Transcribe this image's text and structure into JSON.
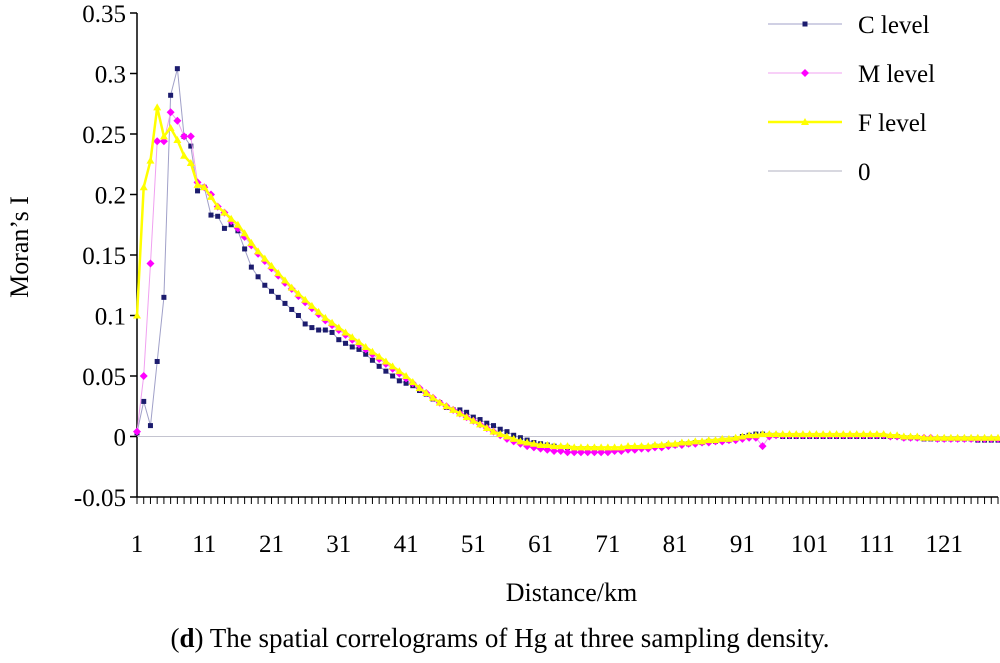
{
  "caption": {
    "prefix": "d",
    "text": " The spatial correlograms of Hg at three sampling density."
  },
  "chart_data": {
    "type": "line",
    "title": "",
    "xlabel": "Distance/km",
    "ylabel": "Moran’s I",
    "xlim": [
      1,
      129
    ],
    "ylim": [
      -0.05,
      0.35
    ],
    "xticks": [
      1,
      11,
      21,
      31,
      41,
      51,
      61,
      71,
      81,
      91,
      101,
      111,
      121
    ],
    "yticks": [
      -0.05,
      0,
      0.05,
      0.1,
      0.15,
      0.2,
      0.25,
      0.3,
      0.35
    ],
    "ytick_labels": [
      "-0.05",
      "0",
      "0.05",
      "0.1",
      "0.15",
      "0.2",
      "0.25",
      "0.3",
      "0.35"
    ],
    "grid": false,
    "legend_position": "top-right",
    "series": [
      {
        "name": "C level",
        "color": "#1c1c6e",
        "line_color": "#a0a0c8",
        "marker": "square",
        "x": [
          1,
          2,
          3,
          4,
          5,
          6,
          7,
          8,
          9,
          10,
          11,
          12,
          13,
          14,
          15,
          16,
          17,
          18,
          19,
          20,
          21,
          22,
          23,
          24,
          25,
          26,
          27,
          28,
          29,
          30,
          31,
          32,
          33,
          34,
          35,
          36,
          37,
          38,
          39,
          40,
          41,
          42,
          43,
          44,
          45,
          46,
          47,
          48,
          49,
          50,
          51,
          52,
          53,
          54,
          55,
          56,
          57,
          58,
          59,
          60,
          61,
          62,
          63,
          64,
          65,
          66,
          67,
          68,
          69,
          70,
          71,
          72,
          73,
          74,
          75,
          76,
          77,
          78,
          79,
          80,
          81,
          82,
          83,
          84,
          85,
          86,
          87,
          88,
          89,
          90,
          91,
          92,
          93,
          94,
          95,
          96,
          97,
          98,
          99,
          100,
          101,
          102,
          103,
          104,
          105,
          106,
          107,
          108,
          109,
          110,
          111,
          112,
          113,
          114,
          115,
          116,
          117,
          118,
          119,
          120,
          121,
          122,
          123,
          124,
          125,
          126,
          127,
          128,
          129
        ],
        "y": [
          0.003,
          0.029,
          0.009,
          0.062,
          0.115,
          0.282,
          0.304,
          0.248,
          0.24,
          0.203,
          0.206,
          0.183,
          0.182,
          0.172,
          0.175,
          0.17,
          0.155,
          0.14,
          0.132,
          0.125,
          0.12,
          0.115,
          0.11,
          0.105,
          0.1,
          0.093,
          0.09,
          0.088,
          0.088,
          0.086,
          0.08,
          0.077,
          0.074,
          0.072,
          0.068,
          0.063,
          0.058,
          0.054,
          0.05,
          0.046,
          0.044,
          0.042,
          0.038,
          0.035,
          0.031,
          0.028,
          0.024,
          0.022,
          0.022,
          0.02,
          0.016,
          0.014,
          0.011,
          0.009,
          0.006,
          0.004,
          0.001,
          -0.001,
          -0.003,
          -0.005,
          -0.006,
          -0.007,
          -0.008,
          -0.009,
          -0.009,
          -0.01,
          -0.01,
          -0.01,
          -0.01,
          -0.011,
          -0.011,
          -0.011,
          -0.011,
          -0.01,
          -0.01,
          -0.009,
          -0.009,
          -0.008,
          -0.008,
          -0.007,
          -0.007,
          -0.006,
          -0.006,
          -0.005,
          -0.005,
          -0.004,
          -0.004,
          -0.003,
          -0.003,
          -0.002,
          0.0,
          0.001,
          0.002,
          0.002,
          0.001,
          0.001,
          0.0,
          0.0,
          0.0,
          0.0,
          0.0,
          0.0,
          0.0,
          0.0,
          0.0,
          0.0,
          0.0,
          0.0,
          0.0,
          0.0,
          0.0,
          0.0,
          0.0,
          0.0,
          -0.001,
          -0.001,
          -0.001,
          -0.002,
          -0.002,
          -0.002,
          -0.002,
          -0.002,
          -0.002,
          -0.002,
          -0.002,
          -0.003,
          -0.003,
          -0.003,
          -0.003
        ]
      },
      {
        "name": "M level",
        "color": "#ff00ff",
        "line_color": "#f0a0f0",
        "marker": "diamond",
        "x": [
          1,
          2,
          3,
          4,
          5,
          6,
          7,
          8,
          9,
          10,
          11,
          12,
          13,
          14,
          15,
          16,
          17,
          18,
          19,
          20,
          21,
          22,
          23,
          24,
          25,
          26,
          27,
          28,
          29,
          30,
          31,
          32,
          33,
          34,
          35,
          36,
          37,
          38,
          39,
          40,
          41,
          42,
          43,
          44,
          45,
          46,
          47,
          48,
          49,
          50,
          51,
          52,
          53,
          54,
          55,
          56,
          57,
          58,
          59,
          60,
          61,
          62,
          63,
          64,
          65,
          66,
          67,
          68,
          69,
          70,
          71,
          72,
          73,
          74,
          75,
          76,
          77,
          78,
          79,
          80,
          81,
          82,
          83,
          84,
          85,
          86,
          87,
          88,
          89,
          90,
          91,
          92,
          93,
          94,
          95,
          96,
          97,
          98,
          99,
          100,
          101,
          102,
          103,
          104,
          105,
          106,
          107,
          108,
          109,
          110,
          111,
          112,
          113,
          114,
          115,
          116,
          117,
          118,
          119,
          120,
          121,
          122,
          123,
          124,
          125,
          126,
          127,
          128,
          129
        ],
        "y": [
          0.004,
          0.05,
          0.143,
          0.244,
          0.244,
          0.268,
          0.261,
          0.248,
          0.248,
          0.21,
          0.206,
          0.2,
          0.19,
          0.185,
          0.178,
          0.172,
          0.165,
          0.158,
          0.151,
          0.145,
          0.139,
          0.133,
          0.127,
          0.122,
          0.116,
          0.111,
          0.106,
          0.101,
          0.096,
          0.092,
          0.088,
          0.084,
          0.08,
          0.076,
          0.072,
          0.068,
          0.064,
          0.06,
          0.056,
          0.052,
          0.048,
          0.044,
          0.04,
          0.036,
          0.032,
          0.028,
          0.025,
          0.022,
          0.019,
          0.016,
          0.013,
          0.01,
          0.007,
          0.004,
          0.001,
          -0.002,
          -0.004,
          -0.006,
          -0.008,
          -0.009,
          -0.01,
          -0.011,
          -0.012,
          -0.012,
          -0.013,
          -0.013,
          -0.013,
          -0.013,
          -0.013,
          -0.013,
          -0.013,
          -0.012,
          -0.012,
          -0.011,
          -0.011,
          -0.01,
          -0.01,
          -0.009,
          -0.009,
          -0.008,
          -0.007,
          -0.007,
          -0.006,
          -0.006,
          -0.005,
          -0.005,
          -0.004,
          -0.004,
          -0.003,
          -0.003,
          -0.002,
          -0.001,
          -0.001,
          -0.008,
          0.0,
          0.001,
          0.001,
          0.001,
          0.001,
          0.001,
          0.001,
          0.001,
          0.001,
          0.001,
          0.001,
          0.001,
          0.001,
          0.001,
          0.001,
          0.001,
          0.001,
          0.001,
          0.0,
          0.0,
          -0.001,
          -0.001,
          -0.001,
          -0.001,
          -0.001,
          -0.002,
          -0.002,
          -0.002,
          -0.002,
          -0.002,
          -0.002,
          -0.002,
          -0.002,
          -0.002,
          -0.002
        ]
      },
      {
        "name": "F level",
        "color": "#ffff00",
        "line_color": "#ffff00",
        "marker": "triangle",
        "x": [
          1,
          2,
          3,
          4,
          5,
          6,
          7,
          8,
          9,
          10,
          11,
          12,
          13,
          14,
          15,
          16,
          17,
          18,
          19,
          20,
          21,
          22,
          23,
          24,
          25,
          26,
          27,
          28,
          29,
          30,
          31,
          32,
          33,
          34,
          35,
          36,
          37,
          38,
          39,
          40,
          41,
          42,
          43,
          44,
          45,
          46,
          47,
          48,
          49,
          50,
          51,
          52,
          53,
          54,
          55,
          56,
          57,
          58,
          59,
          60,
          61,
          62,
          63,
          64,
          65,
          66,
          67,
          68,
          69,
          70,
          71,
          72,
          73,
          74,
          75,
          76,
          77,
          78,
          79,
          80,
          81,
          82,
          83,
          84,
          85,
          86,
          87,
          88,
          89,
          90,
          91,
          92,
          93,
          94,
          95,
          96,
          97,
          98,
          99,
          100,
          101,
          102,
          103,
          104,
          105,
          106,
          107,
          108,
          109,
          110,
          111,
          112,
          113,
          114,
          115,
          116,
          117,
          118,
          119,
          120,
          121,
          122,
          123,
          124,
          125,
          126,
          127,
          128,
          129
        ],
        "y": [
          0.1,
          0.206,
          0.228,
          0.272,
          0.248,
          0.255,
          0.245,
          0.232,
          0.226,
          0.208,
          0.206,
          0.198,
          0.19,
          0.185,
          0.18,
          0.175,
          0.168,
          0.16,
          0.153,
          0.147,
          0.141,
          0.135,
          0.129,
          0.123,
          0.118,
          0.113,
          0.108,
          0.103,
          0.098,
          0.094,
          0.09,
          0.086,
          0.082,
          0.078,
          0.074,
          0.07,
          0.066,
          0.062,
          0.058,
          0.054,
          0.05,
          0.045,
          0.04,
          0.036,
          0.032,
          0.028,
          0.025,
          0.022,
          0.019,
          0.016,
          0.013,
          0.01,
          0.007,
          0.004,
          0.002,
          0.0,
          -0.002,
          -0.004,
          -0.005,
          -0.006,
          -0.007,
          -0.007,
          -0.008,
          -0.008,
          -0.008,
          -0.009,
          -0.009,
          -0.009,
          -0.009,
          -0.009,
          -0.009,
          -0.009,
          -0.009,
          -0.008,
          -0.008,
          -0.008,
          -0.008,
          -0.007,
          -0.007,
          -0.006,
          -0.006,
          -0.005,
          -0.005,
          -0.004,
          -0.004,
          -0.003,
          -0.003,
          -0.002,
          -0.002,
          -0.001,
          0.0,
          0.001,
          0.001,
          0.002,
          0.002,
          0.002,
          0.002,
          0.002,
          0.002,
          0.002,
          0.002,
          0.002,
          0.002,
          0.002,
          0.002,
          0.002,
          0.002,
          0.002,
          0.002,
          0.002,
          0.002,
          0.002,
          0.001,
          0.001,
          0.0,
          0.0,
          0.0,
          -0.001,
          -0.001,
          -0.001,
          -0.001,
          -0.001,
          -0.001,
          -0.001,
          -0.001,
          -0.001,
          -0.001,
          -0.001,
          -0.001
        ]
      },
      {
        "name": "0",
        "color": "#b0b0c0",
        "line_color": "#b0b0c0",
        "marker": "none",
        "x": [
          1,
          129
        ],
        "y": [
          0,
          0
        ]
      }
    ]
  }
}
